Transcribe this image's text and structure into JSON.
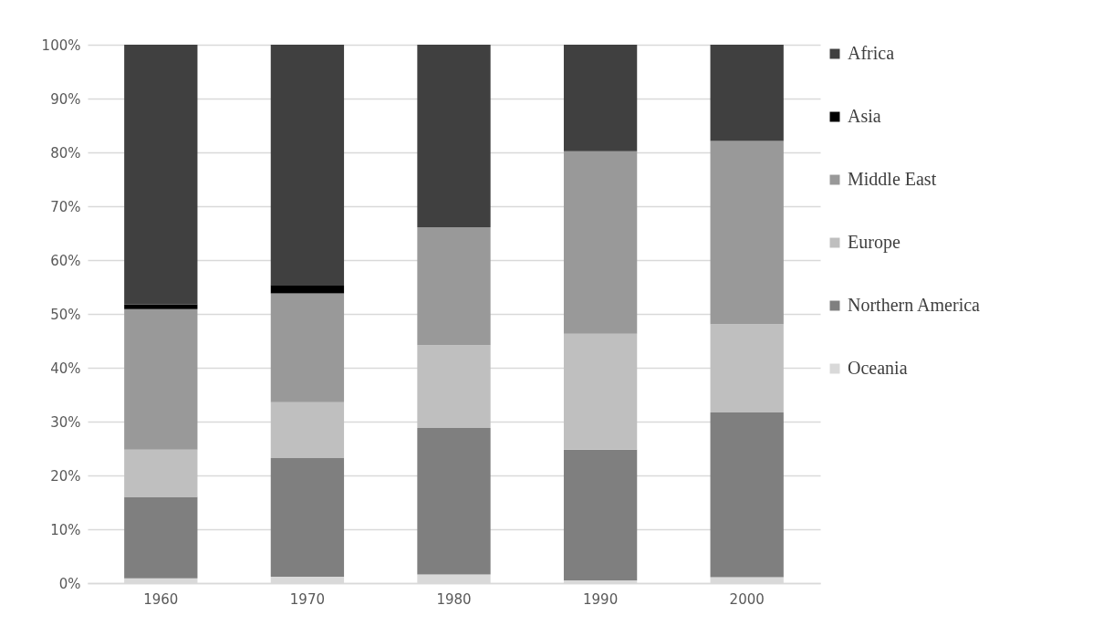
{
  "chart_data": {
    "type": "bar",
    "stacked": true,
    "categories": [
      "1960",
      "1970",
      "1980",
      "1990",
      "2000"
    ],
    "series": [
      {
        "name": "Oceania",
        "color": "#d9d9d9",
        "values": [
          0.9,
          1.2,
          1.6,
          0.5,
          1.1
        ]
      },
      {
        "name": "Northern America",
        "color": "#7f7f7f",
        "values": [
          15.1,
          22.0,
          27.2,
          24.3,
          30.6
        ]
      },
      {
        "name": "Europe",
        "color": "#bfbfbf",
        "values": [
          8.8,
          10.4,
          15.4,
          21.5,
          16.4
        ]
      },
      {
        "name": "Middle East",
        "color": "#999999",
        "values": [
          26.1,
          20.2,
          21.9,
          33.9,
          34.0
        ]
      },
      {
        "name": "Asia",
        "color": "#000000",
        "values": [
          0.9,
          1.6,
          0,
          0,
          0
        ]
      },
      {
        "name": "Africa",
        "color": "#404040",
        "values": [
          48.2,
          44.6,
          33.9,
          19.8,
          17.9
        ]
      }
    ],
    "ylim": [
      0,
      100
    ],
    "yticks": [
      {
        "value": 0,
        "label": "0%"
      },
      {
        "value": 10,
        "label": "10%"
      },
      {
        "value": 20,
        "label": "20%"
      },
      {
        "value": 30,
        "label": "30%"
      },
      {
        "value": 40,
        "label": "40%"
      },
      {
        "value": 50,
        "label": "50%"
      },
      {
        "value": 60,
        "label": "60%"
      },
      {
        "value": 70,
        "label": "70%"
      },
      {
        "value": 80,
        "label": "80%"
      },
      {
        "value": 90,
        "label": "90%"
      },
      {
        "value": 100,
        "label": "100%"
      }
    ],
    "grid": "y",
    "legend": "right"
  }
}
